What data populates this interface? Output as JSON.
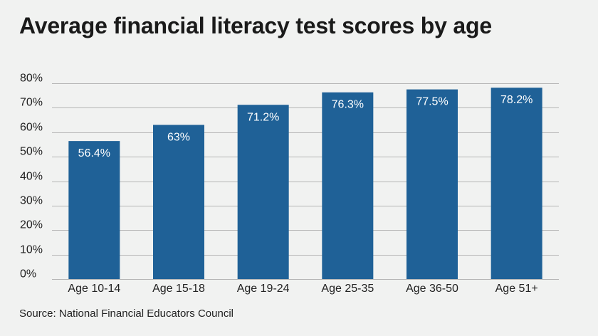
{
  "title": "Average financial literacy test scores by age",
  "source": "Source: National Financial Educators Council",
  "colors": {
    "bar": "#1f6197",
    "grid": "#b5b5b5",
    "background": "#f1f2f1"
  },
  "chart_data": {
    "type": "bar",
    "title": "Average financial literacy test scores by age",
    "xlabel": "",
    "ylabel": "",
    "categories": [
      "Age 10-14",
      "Age 15-18",
      "Age 19-24",
      "Age 25-35",
      "Age 36-50",
      "Age 51+"
    ],
    "values": [
      56.4,
      63,
      71.2,
      76.3,
      77.5,
      78.2
    ],
    "value_labels": [
      "56.4%",
      "63%",
      "71.2%",
      "76.3%",
      "77.5%",
      "78.2%"
    ],
    "ylim": [
      0,
      80
    ],
    "yticks": [
      0,
      10,
      20,
      30,
      40,
      50,
      60,
      70,
      80
    ],
    "ytick_labels": [
      "0%",
      "10%",
      "20%",
      "30%",
      "40%",
      "50%",
      "60%",
      "70%",
      "80%"
    ],
    "grid": true,
    "legend": "none"
  }
}
